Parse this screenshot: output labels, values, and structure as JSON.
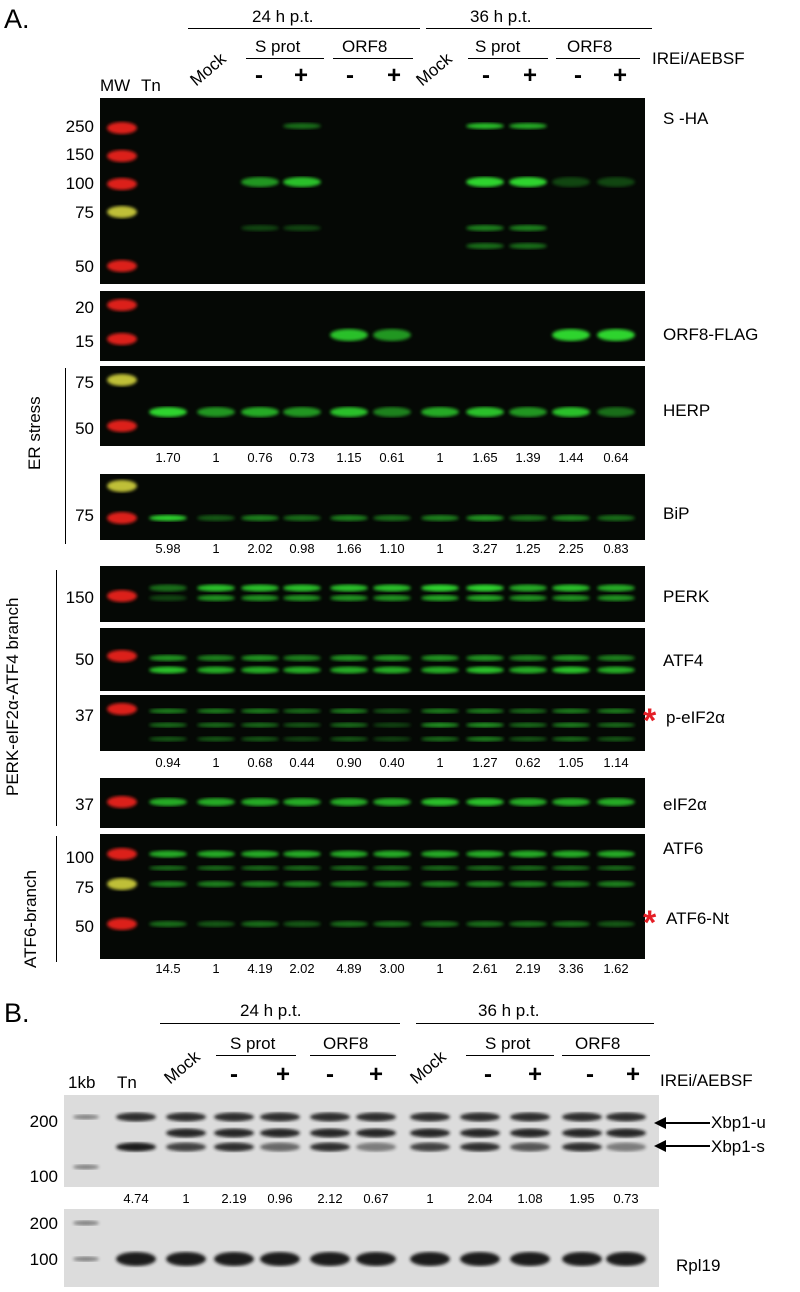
{
  "panelA": {
    "letter": "A.",
    "time_labels": [
      "24 h p.t.",
      "36 h p.t."
    ],
    "groups": [
      "S prot",
      "ORF8",
      "S prot",
      "ORF8"
    ],
    "lane_labels": [
      "MW",
      "Tn",
      "Mock",
      "Mock"
    ],
    "treatment_signs": [
      "-",
      "+",
      "-",
      "+",
      "-",
      "+",
      "-",
      "+"
    ],
    "treatment_label": "IREi/AEBSF",
    "side_labels": [
      "ER stress",
      "PERK-eIF2α-ATF4 branch",
      "ATF6-branch"
    ],
    "blots": [
      {
        "label": "S -HA",
        "mw": [
          "250",
          "150",
          "100",
          "75",
          "50"
        ]
      },
      {
        "label": "ORF8-FLAG",
        "mw": [
          "20",
          "15"
        ]
      },
      {
        "label": "HERP",
        "mw": [
          "75",
          "50"
        ],
        "quant": [
          "1.70",
          "1",
          "0.76",
          "0.73",
          "1.15",
          "0.61",
          "1",
          "1.65",
          "1.39",
          "1.44",
          "0.64"
        ]
      },
      {
        "label": "BiP",
        "mw": [
          "75"
        ],
        "quant": [
          "5.98",
          "1",
          "2.02",
          "0.98",
          "1.66",
          "1.10",
          "1",
          "3.27",
          "1.25",
          "2.25",
          "0.83"
        ]
      },
      {
        "label": "PERK",
        "mw": [
          "150"
        ]
      },
      {
        "label": "ATF4",
        "mw": [
          "50"
        ]
      },
      {
        "label": "p-eIF2α",
        "mw": [
          "37"
        ],
        "quant": [
          "0.94",
          "1",
          "0.68",
          "0.44",
          "0.90",
          "0.40",
          "1",
          "1.27",
          "0.62",
          "1.05",
          "1.14"
        ]
      },
      {
        "label": "eIF2α",
        "mw": [
          "37"
        ]
      },
      {
        "label": "ATF6",
        "label2": "ATF6-Nt",
        "mw": [
          "100",
          "75",
          "50"
        ],
        "quant": [
          "14.5",
          "1",
          "4.19",
          "2.02",
          "4.89",
          "3.00",
          "1",
          "2.61",
          "2.19",
          "3.36",
          "1.62"
        ]
      }
    ]
  },
  "panelB": {
    "letter": "B.",
    "time_labels": [
      "24 h p.t.",
      "36 h p.t."
    ],
    "groups": [
      "S prot",
      "ORF8",
      "S prot",
      "ORF8"
    ],
    "lane_labels": [
      "1kb",
      "Tn",
      "Mock",
      "Mock"
    ],
    "treatment_signs": [
      "-",
      "+",
      "-",
      "+",
      "-",
      "+",
      "-",
      "+"
    ],
    "treatment_label": "IREi/AEBSF",
    "gel1": {
      "mw": [
        "200",
        "100"
      ],
      "labels": [
        "Xbp1-u",
        "Xbp1-s"
      ],
      "quant": [
        "4.74",
        "1",
        "2.19",
        "0.96",
        "2.12",
        "0.67",
        "1",
        "2.04",
        "1.08",
        "1.95",
        "0.73"
      ]
    },
    "gel2": {
      "mw": [
        "200",
        "100"
      ],
      "label": "Rpl19"
    }
  },
  "colors": {
    "blot_bg": "#050805",
    "band": "#2fd42f",
    "marker_red": "#e8231e",
    "marker_yellow": "#c9c93a",
    "gel_bg": "#dcdcdc",
    "gel_band": "#1a1a1a",
    "star": "#e41e26"
  }
}
